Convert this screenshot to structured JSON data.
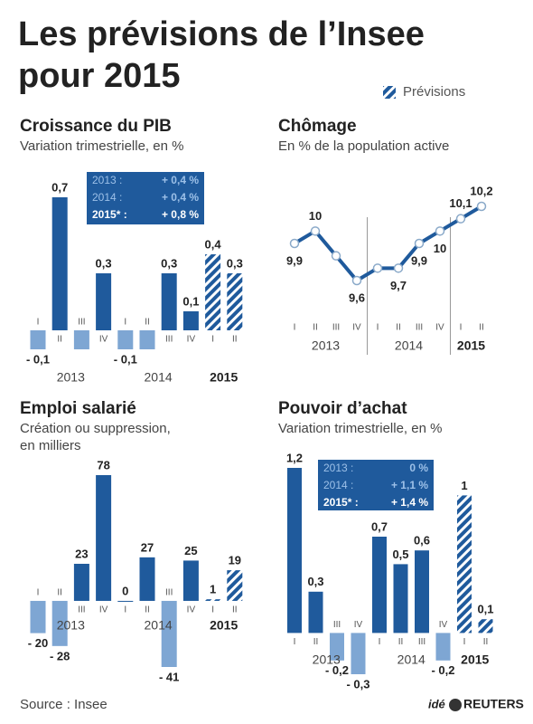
{
  "title": [
    "Les prévisions de l’Insee",
    "pour 2015"
  ],
  "legend": "Prévisions",
  "source": "Source : Insee",
  "logo": [
    "idé",
    "REUTERS"
  ],
  "chart_data": [
    {
      "type": "bar",
      "title": "Croissance du PIB",
      "subtitle": [
        "Variation trimestrielle, en %"
      ],
      "categories": [
        "I",
        "II",
        "III",
        "IV",
        "I",
        "II",
        "III",
        "IV",
        "I",
        "II"
      ],
      "groups": [
        {
          "name": "2013",
          "size": 4
        },
        {
          "name": "2014",
          "size": 4
        },
        {
          "name": "2015",
          "size": 2,
          "bold": true
        }
      ],
      "values": [
        -0.1,
        0.7,
        -0.1,
        0.3,
        -0.1,
        -0.1,
        0.3,
        0.1,
        0.4,
        0.3
      ],
      "value_labels": [
        "- 0,1",
        "0,7",
        null,
        "0,3",
        "- 0,1",
        null,
        "0,3",
        "0,1",
        "0,4",
        "0,3"
      ],
      "hatched": [
        false,
        false,
        false,
        false,
        false,
        false,
        false,
        false,
        true,
        true
      ],
      "color": "#1f5a9c",
      "negative_color": "#7ea6d3",
      "annual": [
        {
          "label": "2013 :",
          "value": "+ 0,4 %"
        },
        {
          "label": "2014 :",
          "value": "+ 0,4 %"
        },
        {
          "label": "2015* :",
          "value": "+ 0,8 %"
        }
      ]
    },
    {
      "type": "line",
      "title": "Chômage",
      "subtitle": [
        "En % de la population active"
      ],
      "categories": [
        "I",
        "II",
        "III",
        "IV",
        "I",
        "II",
        "III",
        "IV",
        "I",
        "II"
      ],
      "groups": [
        {
          "name": "2013",
          "size": 4
        },
        {
          "name": "2014",
          "size": 4
        },
        {
          "name": "2015",
          "size": 2,
          "bold": true
        }
      ],
      "values": [
        9.9,
        10,
        9.8,
        9.6,
        9.7,
        9.7,
        9.9,
        10,
        10.1,
        10.2
      ],
      "value_labels": [
        "9,9",
        "10",
        null,
        "9,6",
        null,
        "9,7",
        "9,9",
        "10",
        "10,1",
        "10,2"
      ],
      "color": "#1f5a9c"
    },
    {
      "type": "bar",
      "title": "Emploi salarié",
      "subtitle": [
        "Création ou suppression,",
        "en milliers"
      ],
      "categories": [
        "I",
        "II",
        "III",
        "IV",
        "I",
        "II",
        "III",
        "IV",
        "I",
        "II"
      ],
      "groups": [
        {
          "name": "2013",
          "size": 4
        },
        {
          "name": "2014",
          "size": 4
        },
        {
          "name": "2015",
          "size": 2,
          "bold": true
        }
      ],
      "values": [
        -20,
        -28,
        23,
        78,
        0,
        27,
        -41,
        25,
        1,
        19
      ],
      "value_labels": [
        "- 20",
        "- 28",
        "23",
        "78",
        "0",
        "27",
        "- 41",
        "25",
        "1",
        "19"
      ],
      "hatched": [
        false,
        false,
        false,
        false,
        false,
        false,
        false,
        false,
        true,
        true
      ],
      "color": "#1f5a9c",
      "negative_color": "#7ea6d3"
    },
    {
      "type": "bar",
      "title": "Pouvoir d’achat",
      "subtitle": [
        "Variation trimestrielle, en %"
      ],
      "categories": [
        "I",
        "II",
        "III",
        "IV",
        "I",
        "II",
        "III",
        "IV",
        "I",
        "II"
      ],
      "groups": [
        {
          "name": "2013",
          "size": 4
        },
        {
          "name": "2014",
          "size": 4
        },
        {
          "name": "2015",
          "size": 2,
          "bold": true
        }
      ],
      "values": [
        1.2,
        0.3,
        -0.2,
        -0.3,
        0.7,
        0.5,
        0.6,
        -0.2,
        1,
        0.1
      ],
      "value_labels": [
        "1,2",
        "0,3",
        "- 0,2",
        "- 0,3",
        "0,7",
        "0,5",
        "0,6",
        "- 0,2",
        "1",
        "0,1"
      ],
      "hatched": [
        false,
        false,
        false,
        false,
        false,
        false,
        false,
        false,
        true,
        true
      ],
      "color": "#1f5a9c",
      "negative_color": "#7ea6d3",
      "annual": [
        {
          "label": "2013 :",
          "value": "0 %"
        },
        {
          "label": "2014 :",
          "value": "+ 1,1 %"
        },
        {
          "label": "2015* :",
          "value": "+ 1,4 %"
        }
      ]
    }
  ]
}
